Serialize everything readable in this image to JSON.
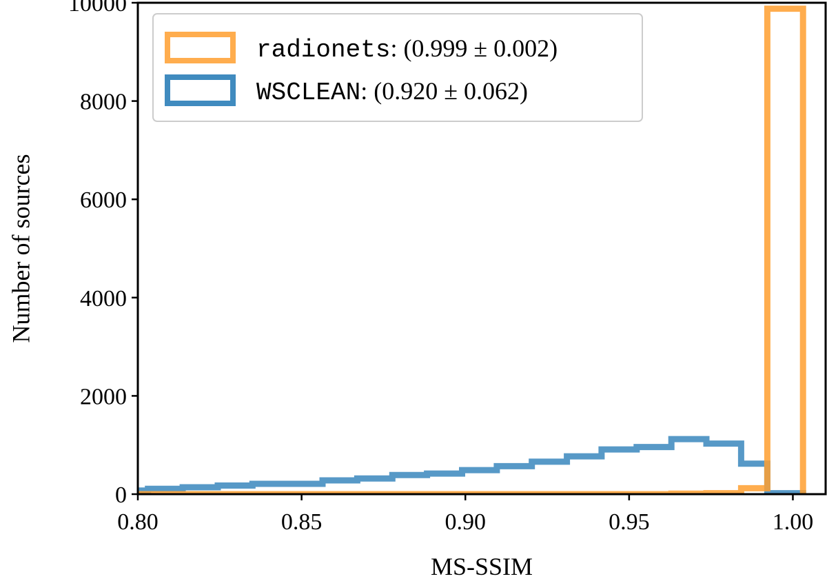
{
  "chart_data": {
    "type": "histogram",
    "xlabel": "MS-SSIM",
    "ylabel": "Number of sources",
    "xlim": [
      0.8,
      1.01
    ],
    "ylim": [
      0,
      10000
    ],
    "grid": false,
    "legend_position": "top-left",
    "x_ticks": [
      {
        "value": 0.8,
        "label": "0.80"
      },
      {
        "value": 0.85,
        "label": "0.85"
      },
      {
        "value": 0.9,
        "label": "0.90"
      },
      {
        "value": 0.95,
        "label": "0.95"
      },
      {
        "value": 1.0,
        "label": "1.00"
      }
    ],
    "y_ticks": [
      {
        "value": 0,
        "label": "0"
      },
      {
        "value": 2000,
        "label": "2000"
      },
      {
        "value": 4000,
        "label": "4000"
      },
      {
        "value": 6000,
        "label": "6000"
      },
      {
        "value": 8000,
        "label": "8000"
      },
      {
        "value": 10000,
        "label": "10000"
      }
    ],
    "series": [
      {
        "name": "radionets",
        "stat": "(0.999 ± 0.002)",
        "color": "#ff9f2f",
        "bin_edges": [
          0.7924,
          0.8031,
          0.8137,
          0.8244,
          0.835,
          0.8457,
          0.8564,
          0.867,
          0.8777,
          0.8883,
          0.899,
          0.9096,
          0.9203,
          0.931,
          0.9416,
          0.9523,
          0.9629,
          0.9736,
          0.9842,
          0.9922,
          1.0031
        ],
        "counts": [
          0,
          0,
          0,
          0,
          0,
          0,
          0,
          0,
          0,
          0,
          0,
          0,
          0,
          0,
          0,
          0,
          10,
          20,
          120,
          9880
        ]
      },
      {
        "name": "WSCLEAN",
        "stat": "(0.920 ± 0.062)",
        "color": "#1f77b4",
        "bin_edges": [
          0.7924,
          0.8031,
          0.8137,
          0.8244,
          0.835,
          0.8457,
          0.8564,
          0.867,
          0.8777,
          0.8883,
          0.899,
          0.9096,
          0.9203,
          0.931,
          0.9416,
          0.9523,
          0.9629,
          0.9736,
          0.9842,
          0.9922,
          1.0031
        ],
        "counts": [
          75,
          110,
          140,
          175,
          210,
          210,
          280,
          320,
          390,
          420,
          490,
          570,
          660,
          770,
          910,
          960,
          1120,
          1030,
          620,
          20
        ]
      }
    ]
  }
}
